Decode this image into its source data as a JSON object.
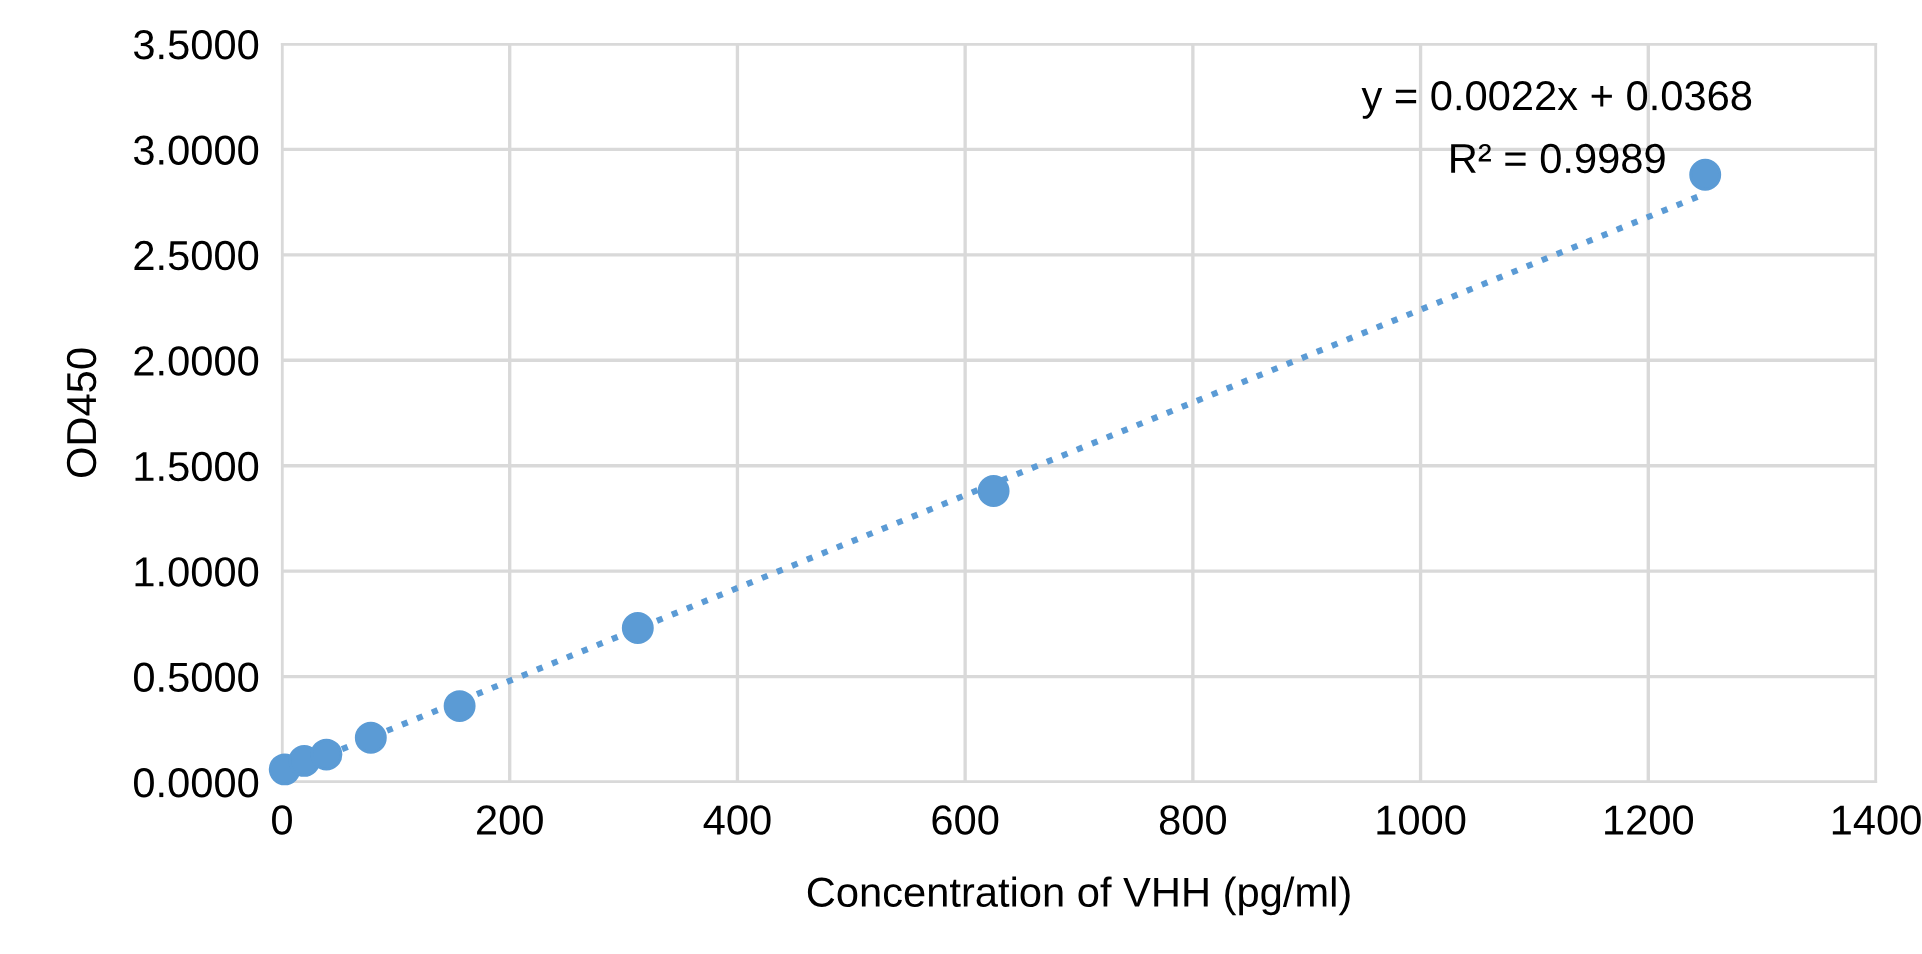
{
  "chart_data": {
    "type": "scatter",
    "xlabel": "Concentration of VHH (pg/ml)",
    "ylabel": "OD450",
    "series": [
      {
        "color": "#5b9bd5",
        "marker": "circle",
        "x": [
          2.4,
          19.5,
          39,
          78,
          156,
          312.5,
          625,
          1250
        ],
        "values": [
          0.06,
          0.1,
          0.13,
          0.21,
          0.36,
          0.73,
          1.38,
          2.88
        ]
      },
      {
        "type": "line",
        "color": "#5b9bd5",
        "line_style": "dotted",
        "x": [
          0,
          1250
        ],
        "values": [
          0.04,
          2.79
        ]
      }
    ],
    "xlim": [
      0,
      1400
    ],
    "xticks": [
      0,
      200,
      400,
      600,
      800,
      1000,
      1200,
      1400
    ],
    "ylim": [
      0,
      3.5
    ],
    "yticks": [
      {
        "value": 0,
        "label": "0.0000"
      },
      {
        "value": 0.5,
        "label": "0.5000"
      },
      {
        "value": 1,
        "label": "1.0000"
      },
      {
        "value": 1.5,
        "label": "1.5000"
      },
      {
        "value": 2,
        "label": "2.0000"
      },
      {
        "value": 2.5,
        "label": "2.5000"
      },
      {
        "value": 3,
        "label": "3.0000"
      },
      {
        "value": 3.5,
        "label": "3.5000"
      }
    ],
    "grid": true,
    "legend": false,
    "annotations": [
      "y = 0.0022x + 0.0368",
      "R² = 0.9989"
    ]
  }
}
